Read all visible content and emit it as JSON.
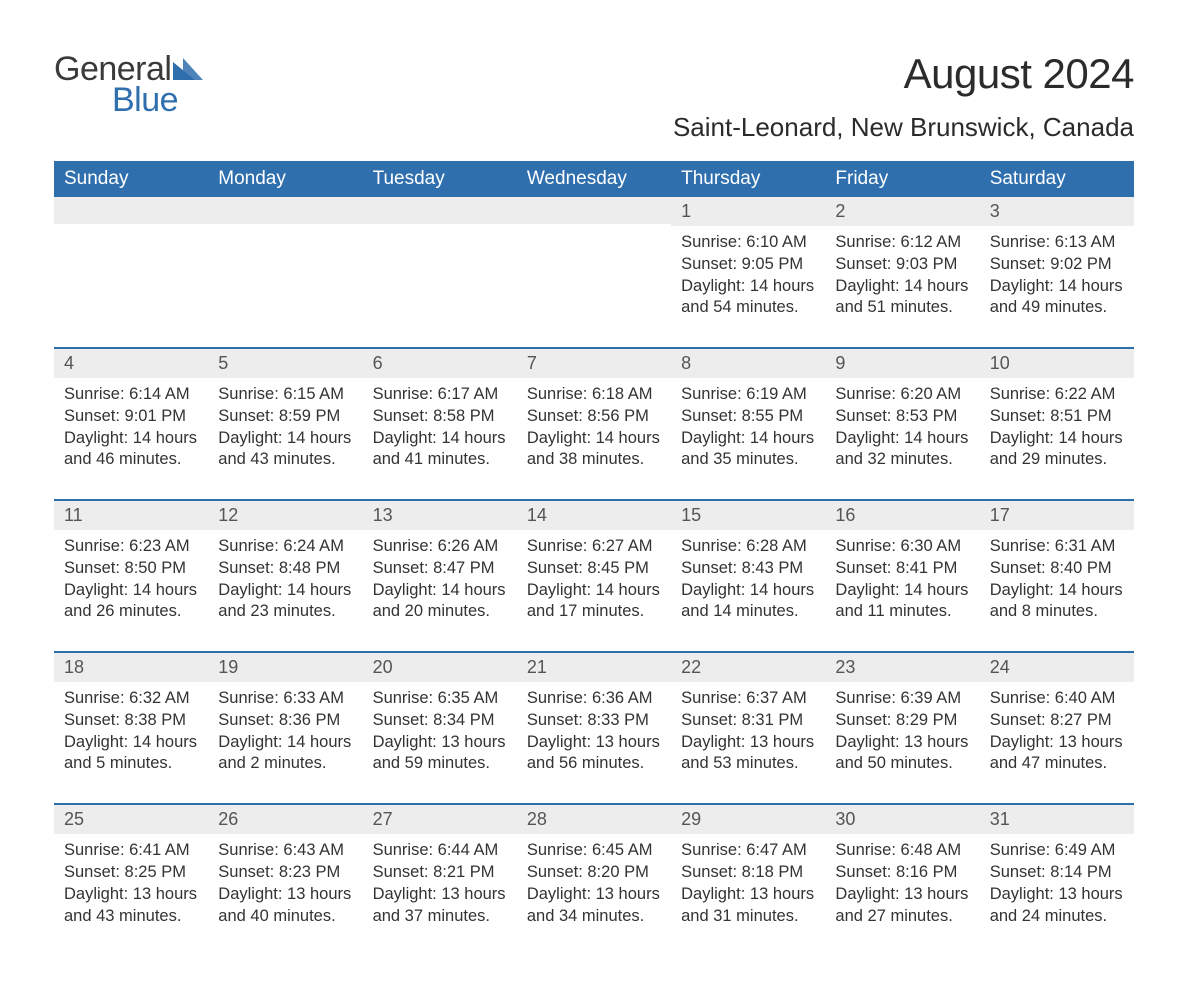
{
  "brand": {
    "general": "General",
    "blue": "Blue"
  },
  "title": {
    "month": "August 2024",
    "location": "Saint-Leonard, New Brunswick, Canada"
  },
  "colors": {
    "header_bg": "#2f6fae",
    "header_text": "#ffffff",
    "daynum_bg": "#ededed",
    "daynum_text": "#555555",
    "body_text": "#333333",
    "rule": "#2f6fae",
    "page_bg": "#ffffff"
  },
  "typography": {
    "month_title_pt": 32,
    "location_pt": 20,
    "dow_pt": 14,
    "daynum_pt": 14,
    "body_pt": 12,
    "logo_pt": 26
  },
  "layout": {
    "columns": 7,
    "weeks": 5,
    "week_start": "Sunday"
  },
  "dow": [
    "Sunday",
    "Monday",
    "Tuesday",
    "Wednesday",
    "Thursday",
    "Friday",
    "Saturday"
  ],
  "weeks": [
    [
      null,
      null,
      null,
      null,
      {
        "n": "1",
        "sunrise": "Sunrise: 6:10 AM",
        "sunset": "Sunset: 9:05 PM",
        "day": "Daylight: 14 hours and 54 minutes."
      },
      {
        "n": "2",
        "sunrise": "Sunrise: 6:12 AM",
        "sunset": "Sunset: 9:03 PM",
        "day": "Daylight: 14 hours and 51 minutes."
      },
      {
        "n": "3",
        "sunrise": "Sunrise: 6:13 AM",
        "sunset": "Sunset: 9:02 PM",
        "day": "Daylight: 14 hours and 49 minutes."
      }
    ],
    [
      {
        "n": "4",
        "sunrise": "Sunrise: 6:14 AM",
        "sunset": "Sunset: 9:01 PM",
        "day": "Daylight: 14 hours and 46 minutes."
      },
      {
        "n": "5",
        "sunrise": "Sunrise: 6:15 AM",
        "sunset": "Sunset: 8:59 PM",
        "day": "Daylight: 14 hours and 43 minutes."
      },
      {
        "n": "6",
        "sunrise": "Sunrise: 6:17 AM",
        "sunset": "Sunset: 8:58 PM",
        "day": "Daylight: 14 hours and 41 minutes."
      },
      {
        "n": "7",
        "sunrise": "Sunrise: 6:18 AM",
        "sunset": "Sunset: 8:56 PM",
        "day": "Daylight: 14 hours and 38 minutes."
      },
      {
        "n": "8",
        "sunrise": "Sunrise: 6:19 AM",
        "sunset": "Sunset: 8:55 PM",
        "day": "Daylight: 14 hours and 35 minutes."
      },
      {
        "n": "9",
        "sunrise": "Sunrise: 6:20 AM",
        "sunset": "Sunset: 8:53 PM",
        "day": "Daylight: 14 hours and 32 minutes."
      },
      {
        "n": "10",
        "sunrise": "Sunrise: 6:22 AM",
        "sunset": "Sunset: 8:51 PM",
        "day": "Daylight: 14 hours and 29 minutes."
      }
    ],
    [
      {
        "n": "11",
        "sunrise": "Sunrise: 6:23 AM",
        "sunset": "Sunset: 8:50 PM",
        "day": "Daylight: 14 hours and 26 minutes."
      },
      {
        "n": "12",
        "sunrise": "Sunrise: 6:24 AM",
        "sunset": "Sunset: 8:48 PM",
        "day": "Daylight: 14 hours and 23 minutes."
      },
      {
        "n": "13",
        "sunrise": "Sunrise: 6:26 AM",
        "sunset": "Sunset: 8:47 PM",
        "day": "Daylight: 14 hours and 20 minutes."
      },
      {
        "n": "14",
        "sunrise": "Sunrise: 6:27 AM",
        "sunset": "Sunset: 8:45 PM",
        "day": "Daylight: 14 hours and 17 minutes."
      },
      {
        "n": "15",
        "sunrise": "Sunrise: 6:28 AM",
        "sunset": "Sunset: 8:43 PM",
        "day": "Daylight: 14 hours and 14 minutes."
      },
      {
        "n": "16",
        "sunrise": "Sunrise: 6:30 AM",
        "sunset": "Sunset: 8:41 PM",
        "day": "Daylight: 14 hours and 11 minutes."
      },
      {
        "n": "17",
        "sunrise": "Sunrise: 6:31 AM",
        "sunset": "Sunset: 8:40 PM",
        "day": "Daylight: 14 hours and 8 minutes."
      }
    ],
    [
      {
        "n": "18",
        "sunrise": "Sunrise: 6:32 AM",
        "sunset": "Sunset: 8:38 PM",
        "day": "Daylight: 14 hours and 5 minutes."
      },
      {
        "n": "19",
        "sunrise": "Sunrise: 6:33 AM",
        "sunset": "Sunset: 8:36 PM",
        "day": "Daylight: 14 hours and 2 minutes."
      },
      {
        "n": "20",
        "sunrise": "Sunrise: 6:35 AM",
        "sunset": "Sunset: 8:34 PM",
        "day": "Daylight: 13 hours and 59 minutes."
      },
      {
        "n": "21",
        "sunrise": "Sunrise: 6:36 AM",
        "sunset": "Sunset: 8:33 PM",
        "day": "Daylight: 13 hours and 56 minutes."
      },
      {
        "n": "22",
        "sunrise": "Sunrise: 6:37 AM",
        "sunset": "Sunset: 8:31 PM",
        "day": "Daylight: 13 hours and 53 minutes."
      },
      {
        "n": "23",
        "sunrise": "Sunrise: 6:39 AM",
        "sunset": "Sunset: 8:29 PM",
        "day": "Daylight: 13 hours and 50 minutes."
      },
      {
        "n": "24",
        "sunrise": "Sunrise: 6:40 AM",
        "sunset": "Sunset: 8:27 PM",
        "day": "Daylight: 13 hours and 47 minutes."
      }
    ],
    [
      {
        "n": "25",
        "sunrise": "Sunrise: 6:41 AM",
        "sunset": "Sunset: 8:25 PM",
        "day": "Daylight: 13 hours and 43 minutes."
      },
      {
        "n": "26",
        "sunrise": "Sunrise: 6:43 AM",
        "sunset": "Sunset: 8:23 PM",
        "day": "Daylight: 13 hours and 40 minutes."
      },
      {
        "n": "27",
        "sunrise": "Sunrise: 6:44 AM",
        "sunset": "Sunset: 8:21 PM",
        "day": "Daylight: 13 hours and 37 minutes."
      },
      {
        "n": "28",
        "sunrise": "Sunrise: 6:45 AM",
        "sunset": "Sunset: 8:20 PM",
        "day": "Daylight: 13 hours and 34 minutes."
      },
      {
        "n": "29",
        "sunrise": "Sunrise: 6:47 AM",
        "sunset": "Sunset: 8:18 PM",
        "day": "Daylight: 13 hours and 31 minutes."
      },
      {
        "n": "30",
        "sunrise": "Sunrise: 6:48 AM",
        "sunset": "Sunset: 8:16 PM",
        "day": "Daylight: 13 hours and 27 minutes."
      },
      {
        "n": "31",
        "sunrise": "Sunrise: 6:49 AM",
        "sunset": "Sunset: 8:14 PM",
        "day": "Daylight: 13 hours and 24 minutes."
      }
    ]
  ]
}
